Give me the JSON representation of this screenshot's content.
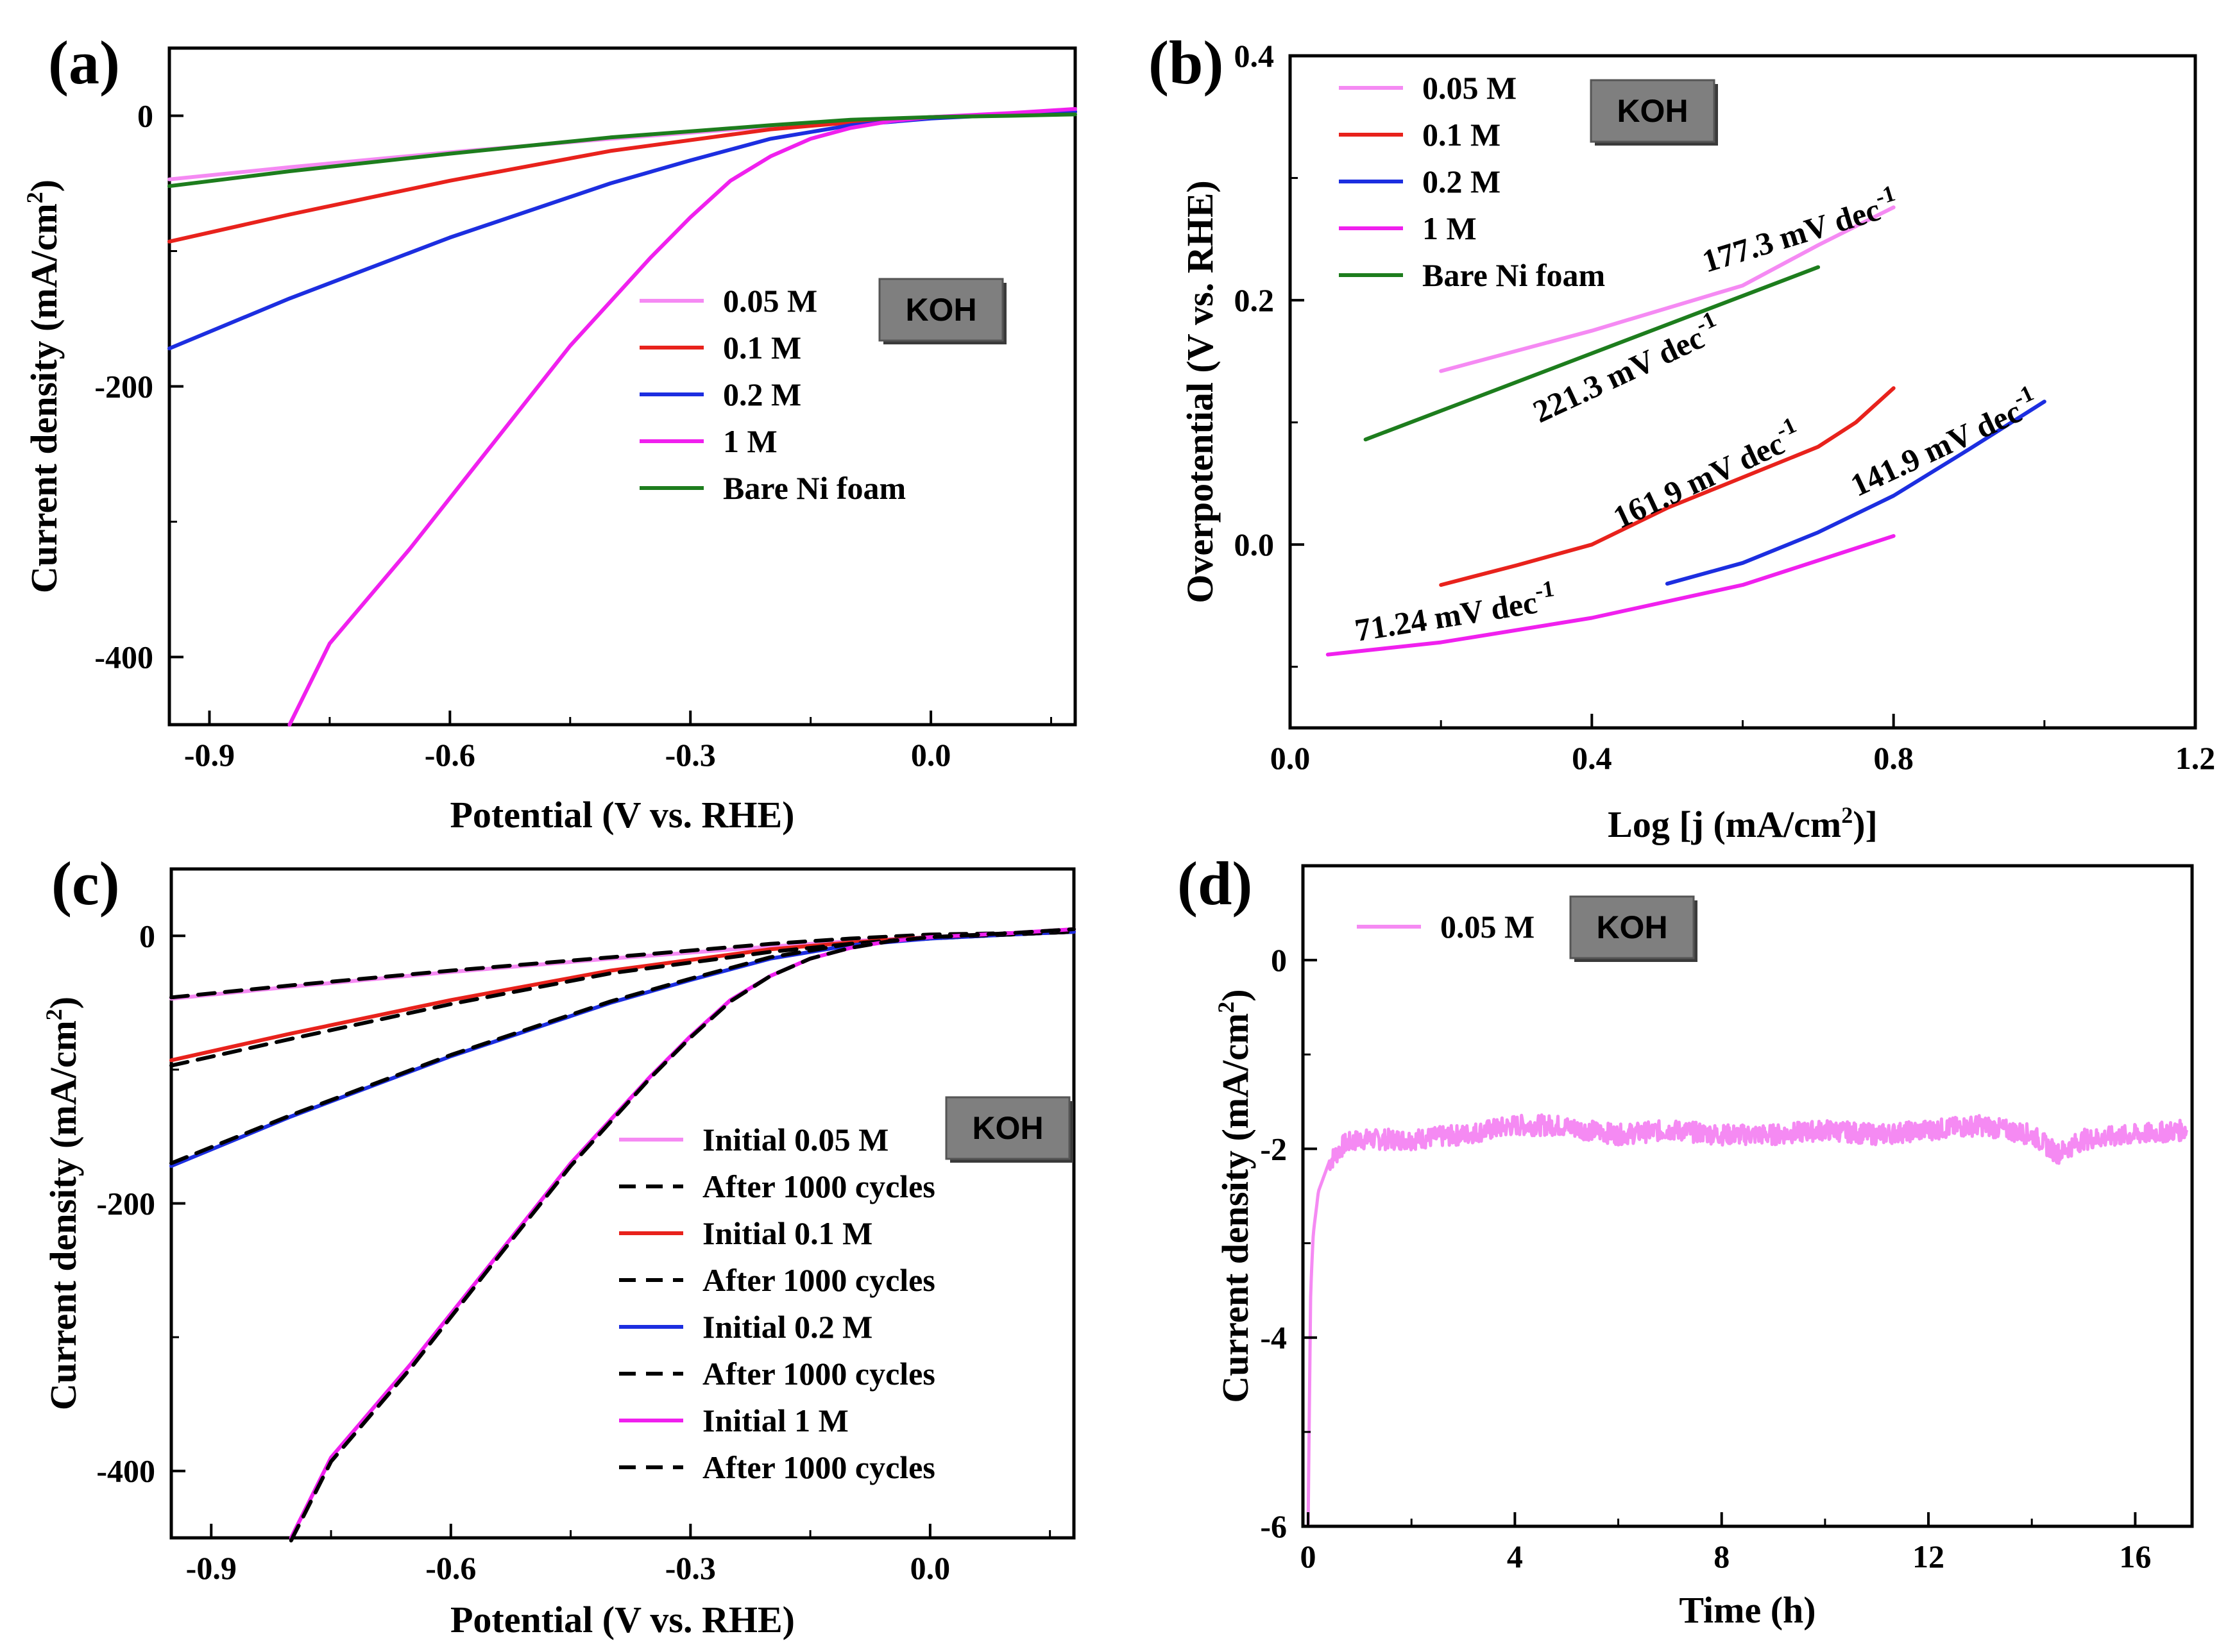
{
  "panels": [
    {
      "label": "(a)",
      "badge": "KOH",
      "xlabel": "Potential (V vs. RHE)",
      "ylabel_parts": [
        "Current density (mA/cm",
        "2",
        ")"
      ],
      "legend_items": [
        "0.05 M",
        "0.1 M",
        "0.2 M",
        "1 M",
        "Bare Ni foam"
      ],
      "xticks": [
        "-0.9",
        "-0.6",
        "-0.3",
        "0.0"
      ],
      "yticks": [
        "0",
        "-200",
        "-400"
      ]
    },
    {
      "label": "(b)",
      "badge": "KOH",
      "xlabel_parts": [
        "Log [j (mA/cm",
        "2",
        ")]"
      ],
      "ylabel": "Overpotential (V vs. RHE)",
      "legend_items": [
        "0.05 M",
        "0.1 M",
        "0.2 M",
        "1 M",
        "Bare Ni foam"
      ],
      "xticks": [
        "0.0",
        "0.4",
        "0.8",
        "1.2"
      ],
      "yticks": [
        "0.4",
        "0.2",
        "0.0"
      ],
      "annotations": [
        {
          "text": "177.3 mV dec",
          "sup": "-1"
        },
        {
          "text": "221.3 mV dec",
          "sup": "-1"
        },
        {
          "text": "161.9 mV dec",
          "sup": "-1"
        },
        {
          "text": "141.9 mV dec",
          "sup": "-1"
        },
        {
          "text": "71.24 mV dec",
          "sup": "-1"
        }
      ]
    },
    {
      "label": "(c)",
      "badge": "KOH",
      "xlabel": "Potential (V vs. RHE)",
      "ylabel_parts": [
        "Current density (mA/cm",
        "2",
        ")"
      ],
      "legend_items": [
        "Initial 0.05 M",
        "After 1000 cycles",
        "Initial 0.1 M",
        "After 1000 cycles",
        "Initial 0.2 M",
        "After 1000 cycles",
        "Initial 1 M",
        "After 1000 cycles"
      ],
      "xticks": [
        "-0.9",
        "-0.6",
        "-0.3",
        "0.0"
      ],
      "yticks": [
        "0",
        "-200",
        "-400"
      ]
    },
    {
      "label": "(d)",
      "badge": "KOH",
      "xlabel": "Time (h)",
      "ylabel_parts": [
        "Current density (mA/cm",
        "2",
        ")"
      ],
      "legend_items": [
        "0.05 M"
      ],
      "xticks": [
        "0",
        "4",
        "8",
        "12",
        "16"
      ],
      "yticks": [
        "0",
        "-2",
        "-4",
        "-6"
      ]
    }
  ],
  "colors": {
    "c005": "#f58af3",
    "c01": "#e8221c",
    "c02": "#1c2ee0",
    "c1": "#f020ee",
    "bare": "#1d7d1d",
    "after": "#000000",
    "badge_bg": "#7f7f7f"
  },
  "chart_data": [
    {
      "type": "line",
      "xlim": [
        -0.95,
        0.18
      ],
      "ylim": [
        -450,
        50
      ],
      "series": [
        {
          "name": "0.05 M",
          "x": [
            -0.95,
            -0.8,
            -0.6,
            -0.4,
            -0.2,
            -0.1,
            0.0,
            0.1,
            0.18
          ],
          "y": [
            -47,
            -38,
            -27,
            -17,
            -8,
            -4,
            -1,
            1,
            3
          ]
        },
        {
          "name": "0.1 M",
          "x": [
            -0.95,
            -0.8,
            -0.6,
            -0.4,
            -0.2,
            -0.1,
            0.0,
            0.1,
            0.18
          ],
          "y": [
            -93,
            -73,
            -48,
            -26,
            -10,
            -5,
            -1,
            1,
            3
          ]
        },
        {
          "name": "0.2 M",
          "x": [
            -0.95,
            -0.8,
            -0.6,
            -0.4,
            -0.3,
            -0.2,
            -0.1,
            0.0,
            0.1,
            0.18
          ],
          "y": [
            -172,
            -135,
            -90,
            -50,
            -33,
            -17,
            -7,
            -2,
            1,
            3
          ]
        },
        {
          "name": "1 M",
          "x": [
            -0.8,
            -0.75,
            -0.65,
            -0.55,
            -0.45,
            -0.35,
            -0.3,
            -0.25,
            -0.2,
            -0.15,
            -0.1,
            -0.05,
            0.0,
            0.1,
            0.18
          ],
          "y": [
            -450,
            -390,
            -320,
            -245,
            -170,
            -105,
            -75,
            -48,
            -30,
            -17,
            -9,
            -4,
            -1,
            2,
            5
          ]
        },
        {
          "name": "Bare Ni foam",
          "x": [
            -0.95,
            -0.8,
            -0.6,
            -0.4,
            -0.2,
            -0.1,
            0.0,
            0.1,
            0.18
          ],
          "y": [
            -52,
            -41,
            -28,
            -16,
            -7,
            -3,
            -1,
            0,
            1
          ]
        }
      ]
    },
    {
      "type": "line",
      "xlim": [
        0.0,
        1.2
      ],
      "ylim": [
        -0.15,
        0.4
      ],
      "series": [
        {
          "name": "0.05 M",
          "x": [
            0.2,
            0.4,
            0.6,
            0.7,
            0.8
          ],
          "y": [
            0.142,
            0.175,
            0.212,
            0.245,
            0.276
          ]
        },
        {
          "name": "0.1 M",
          "x": [
            0.2,
            0.3,
            0.4,
            0.5,
            0.6,
            0.7,
            0.75,
            0.8
          ],
          "y": [
            -0.033,
            -0.017,
            0.0,
            0.03,
            0.055,
            0.08,
            0.1,
            0.128
          ]
        },
        {
          "name": "0.2 M",
          "x": [
            0.5,
            0.6,
            0.7,
            0.8,
            0.9,
            1.0
          ],
          "y": [
            -0.032,
            -0.015,
            0.01,
            0.04,
            0.078,
            0.117
          ]
        },
        {
          "name": "1 M",
          "x": [
            0.05,
            0.2,
            0.4,
            0.6,
            0.7,
            0.8
          ],
          "y": [
            -0.09,
            -0.08,
            -0.06,
            -0.033,
            -0.013,
            0.007
          ]
        },
        {
          "name": "Bare Ni foam",
          "x": [
            0.1,
            0.3,
            0.5,
            0.7
          ],
          "y": [
            0.086,
            0.133,
            0.18,
            0.227
          ]
        }
      ]
    },
    {
      "type": "line",
      "xlim": [
        -0.95,
        0.18
      ],
      "ylim": [
        -450,
        50
      ],
      "series": [
        {
          "name": "Initial 0.05 M",
          "x": [
            -0.95,
            -0.8,
            -0.6,
            -0.4,
            -0.2,
            -0.1,
            0.0,
            0.1,
            0.18
          ],
          "y": [
            -47,
            -38,
            -27,
            -17,
            -8,
            -4,
            -1,
            1,
            3
          ]
        },
        {
          "name": "After 1000 cycles",
          "x": [
            -0.95,
            -0.8,
            -0.6,
            -0.4,
            -0.2,
            -0.1,
            0.0,
            0.1,
            0.18
          ],
          "y": [
            -46,
            -37,
            -26,
            -16,
            -6,
            -2,
            1,
            2,
            3
          ]
        },
        {
          "name": "Initial 0.1 M",
          "x": [
            -0.95,
            -0.8,
            -0.6,
            -0.4,
            -0.2,
            -0.1,
            0.0,
            0.1,
            0.18
          ],
          "y": [
            -93,
            -73,
            -48,
            -26,
            -10,
            -5,
            -1,
            1,
            3
          ]
        },
        {
          "name": "After 1000 cycles",
          "x": [
            -0.95,
            -0.8,
            -0.6,
            -0.4,
            -0.2,
            -0.1,
            0.0,
            0.1,
            0.18
          ],
          "y": [
            -97,
            -77,
            -51,
            -28,
            -12,
            -6,
            -2,
            1,
            3
          ]
        },
        {
          "name": "Initial 0.2 M",
          "x": [
            -0.95,
            -0.8,
            -0.6,
            -0.4,
            -0.3,
            -0.2,
            -0.1,
            0.0,
            0.1,
            0.18
          ],
          "y": [
            -172,
            -135,
            -90,
            -50,
            -33,
            -17,
            -7,
            -2,
            1,
            3
          ]
        },
        {
          "name": "After 1000 cycles",
          "x": [
            -0.95,
            -0.8,
            -0.6,
            -0.4,
            -0.3,
            -0.2,
            -0.1,
            0.0,
            0.1,
            0.18
          ],
          "y": [
            -170,
            -134,
            -89,
            -49,
            -32,
            -16,
            -6,
            -1,
            1,
            3
          ]
        },
        {
          "name": "Initial 1 M",
          "x": [
            -0.8,
            -0.75,
            -0.65,
            -0.55,
            -0.45,
            -0.35,
            -0.3,
            -0.25,
            -0.2,
            -0.15,
            -0.1,
            -0.05,
            0.0,
            0.1,
            0.18
          ],
          "y": [
            -450,
            -390,
            -320,
            -245,
            -170,
            -105,
            -75,
            -48,
            -30,
            -17,
            -9,
            -4,
            -1,
            2,
            5
          ]
        },
        {
          "name": "After 1000 cycles",
          "x": [
            -0.8,
            -0.75,
            -0.65,
            -0.55,
            -0.45,
            -0.35,
            -0.3,
            -0.25,
            -0.2,
            -0.15,
            -0.1,
            -0.05,
            0.0,
            0.1,
            0.18
          ],
          "y": [
            -452,
            -393,
            -323,
            -247,
            -172,
            -106,
            -76,
            -49,
            -30,
            -17,
            -9,
            -4,
            -1,
            2,
            5
          ]
        }
      ]
    },
    {
      "type": "line",
      "xlim": [
        -0.1,
        17.1
      ],
      "ylim": [
        -6,
        1
      ],
      "series": [
        {
          "name": "0.05 M",
          "x": [
            0.0,
            0.05,
            0.1,
            0.2,
            0.4,
            0.7,
            1.0,
            2.0,
            3.0,
            4.0,
            4.8,
            6.0,
            7.0,
            8.0,
            9.0,
            10.0,
            11.0,
            12.0,
            13.0,
            14.0,
            14.5,
            15.0,
            16.0,
            17.0
          ],
          "y": [
            -6.0,
            -3.5,
            -2.9,
            -2.45,
            -2.15,
            -1.95,
            -1.9,
            -1.9,
            -1.85,
            -1.75,
            -1.75,
            -1.85,
            -1.8,
            -1.85,
            -1.85,
            -1.8,
            -1.85,
            -1.8,
            -1.75,
            -1.85,
            -2.05,
            -1.9,
            -1.85,
            -1.8
          ]
        }
      ]
    }
  ]
}
